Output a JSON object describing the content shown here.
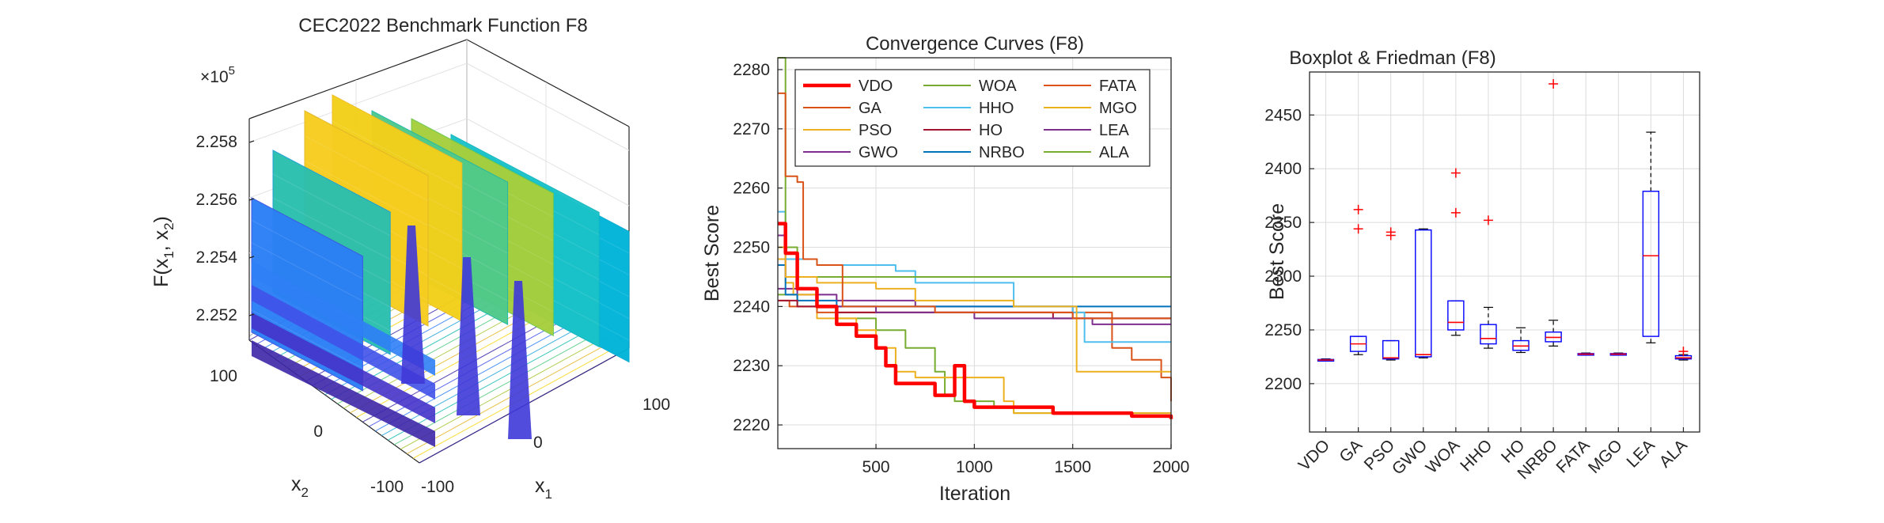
{
  "panel1": {
    "title": "CEC2022 Benchmark Function F8",
    "exponent_label": "×10",
    "exponent_power": "5",
    "zlabel": "F(x",
    "zlabel_sub1": "1",
    "zlabel_mid": ", x",
    "zlabel_sub2": "2",
    "zlabel_end": ")",
    "xlabel": "x",
    "xlabel_sub": "1",
    "ylabel": "x",
    "ylabel_sub": "2",
    "z_ticks": [
      "2.258",
      "2.256",
      "2.254",
      "2.252"
    ],
    "x1_ticks": [
      "-100",
      "0",
      "100"
    ],
    "x2_ticks": [
      "100",
      "0",
      "-100"
    ]
  },
  "chart_data": [
    {
      "type": "surface",
      "title": "CEC2022 Benchmark Function F8",
      "xlabel": "x1",
      "ylabel": "x2",
      "zlabel": "F(x1, x2)",
      "xlim": [
        -100,
        100
      ],
      "ylim": [
        -100,
        100
      ],
      "zlim": [
        225100,
        225900
      ],
      "z_scale": "×10^5",
      "colormap": "parula",
      "contours_below": true
    },
    {
      "type": "line",
      "title": "Convergence Curves (F8)",
      "xlabel": "Iteration",
      "ylabel": "Best Score",
      "xlim": [
        1,
        2000
      ],
      "ylim": [
        2216,
        2282
      ],
      "x_ticks": [
        500,
        1000,
        1500,
        2000
      ],
      "y_ticks": [
        2220,
        2230,
        2240,
        2250,
        2260,
        2270,
        2280
      ],
      "grid": true,
      "legend_position": "top-center",
      "legend_columns": 3,
      "series": [
        {
          "name": "VDO",
          "color": "#ff0000",
          "width": 4.5,
          "points": [
            [
              1,
              2254
            ],
            [
              40,
              2249
            ],
            [
              100,
              2243
            ],
            [
              200,
              2240
            ],
            [
              300,
              2237
            ],
            [
              400,
              2235
            ],
            [
              500,
              2233
            ],
            [
              550,
              2230
            ],
            [
              600,
              2227
            ],
            [
              700,
              2227
            ],
            [
              800,
              2225
            ],
            [
              850,
              2225
            ],
            [
              900,
              2230
            ],
            [
              950,
              2224
            ],
            [
              1000,
              2223
            ],
            [
              1150,
              2223
            ],
            [
              1250,
              2223
            ],
            [
              1400,
              2222
            ],
            [
              1600,
              2222
            ],
            [
              1800,
              2221.5
            ],
            [
              2000,
              2221
            ]
          ]
        },
        {
          "name": "GA",
          "color": "#d95319",
          "width": 2,
          "points": [
            [
              1,
              2276
            ],
            [
              40,
              2262
            ],
            [
              100,
              2261
            ],
            [
              130,
              2248
            ],
            [
              200,
              2247
            ],
            [
              330,
              2240
            ],
            [
              400,
              2240
            ],
            [
              800,
              2239
            ],
            [
              1500,
              2238
            ],
            [
              1900,
              2238
            ],
            [
              2000,
              2238
            ]
          ]
        },
        {
          "name": "PSO",
          "color": "#edb120",
          "width": 2,
          "points": [
            [
              1,
              2250
            ],
            [
              40,
              2245
            ],
            [
              100,
              2245
            ],
            [
              200,
              2244
            ],
            [
              400,
              2244
            ],
            [
              500,
              2243
            ],
            [
              700,
              2241
            ],
            [
              1100,
              2241
            ],
            [
              1200,
              2240
            ],
            [
              1480,
              2240
            ],
            [
              1520,
              2229
            ],
            [
              2000,
              2229
            ]
          ]
        },
        {
          "name": "GWO",
          "color": "#7e2f8e",
          "width": 2,
          "points": [
            [
              1,
              2252
            ],
            [
              40,
              2245
            ],
            [
              100,
              2243
            ],
            [
              200,
              2240
            ],
            [
              500,
              2239
            ],
            [
              1000,
              2238
            ],
            [
              1500,
              2238
            ],
            [
              1600,
              2237
            ],
            [
              2000,
              2237
            ]
          ]
        },
        {
          "name": "WOA",
          "color": "#77ac30",
          "width": 2,
          "points": [
            [
              1,
              2282
            ],
            [
              30,
              2282
            ],
            [
              40,
              2250
            ],
            [
              100,
              2245
            ],
            [
              400,
              2245
            ],
            [
              2000,
              2245
            ]
          ]
        },
        {
          "name": "HHO",
          "color": "#4dbeee",
          "width": 2,
          "points": [
            [
              1,
              2256
            ],
            [
              40,
              2248
            ],
            [
              200,
              2247
            ],
            [
              600,
              2246
            ],
            [
              700,
              2244
            ],
            [
              1150,
              2244
            ],
            [
              1200,
              2240
            ],
            [
              1500,
              2239
            ],
            [
              1560,
              2234
            ],
            [
              2000,
              2234
            ]
          ]
        },
        {
          "name": "HO",
          "color": "#a2142f",
          "width": 2,
          "points": [
            [
              1,
              2241
            ],
            [
              100,
              2240
            ],
            [
              300,
              2239
            ],
            [
              900,
              2239
            ],
            [
              1200,
              2239
            ],
            [
              1400,
              2238
            ],
            [
              2000,
              2238
            ]
          ]
        },
        {
          "name": "NRBO",
          "color": "#0072bd",
          "width": 2,
          "points": [
            [
              1,
              2247
            ],
            [
              40,
              2242
            ],
            [
              100,
              2241
            ],
            [
              300,
              2240
            ],
            [
              2000,
              2240
            ]
          ]
        },
        {
          "name": "FATA",
          "color": "#d95319",
          "width": 2,
          "points": [
            [
              1,
              2241
            ],
            [
              60,
              2240
            ],
            [
              200,
              2239
            ],
            [
              500,
              2239
            ],
            [
              1000,
              2239
            ],
            [
              1400,
              2239
            ],
            [
              1700,
              2233
            ],
            [
              1800,
              2231
            ],
            [
              1950,
              2228
            ],
            [
              2000,
              2224
            ]
          ]
        },
        {
          "name": "MGO",
          "color": "#edb120",
          "width": 2,
          "points": [
            [
              1,
              2248
            ],
            [
              40,
              2244
            ],
            [
              80,
              2242
            ],
            [
              200,
              2238
            ],
            [
              400,
              2236
            ],
            [
              500,
              2233
            ],
            [
              600,
              2229
            ],
            [
              700,
              2228
            ],
            [
              800,
              2228
            ],
            [
              1000,
              2228
            ],
            [
              1150,
              2224
            ],
            [
              1200,
              2222
            ],
            [
              1500,
              2222
            ],
            [
              2000,
              2222
            ]
          ]
        },
        {
          "name": "LEA",
          "color": "#7e2f8e",
          "width": 2,
          "points": [
            [
              1,
              2243
            ],
            [
              100,
              2242
            ],
            [
              300,
              2241
            ],
            [
              700,
              2240
            ],
            [
              1300,
              2240
            ],
            [
              1500,
              2238
            ],
            [
              2000,
              2238
            ]
          ]
        },
        {
          "name": "ALA",
          "color": "#77ac30",
          "width": 2,
          "points": [
            [
              1,
              2242
            ],
            [
              100,
              2240
            ],
            [
              300,
              2238
            ],
            [
              500,
              2236
            ],
            [
              650,
              2233
            ],
            [
              800,
              2229
            ],
            [
              850,
              2225
            ],
            [
              900,
              2224
            ],
            [
              1000,
              2224
            ],
            [
              1100,
              2223
            ],
            [
              1200,
              2222
            ],
            [
              1500,
              2222
            ],
            [
              2000,
              2222
            ]
          ]
        }
      ]
    },
    {
      "type": "boxplot",
      "title": "Boxplot & Friedman (F8)",
      "ylabel": "Best Score",
      "ylim": [
        2155,
        2490
      ],
      "y_ticks": [
        2200,
        2250,
        2300,
        2350,
        2400,
        2450
      ],
      "grid": true,
      "categories": [
        "VDO",
        "GA",
        "PSO",
        "GWO",
        "WOA",
        "HHO",
        "HO",
        "NRBO",
        "FATA",
        "MGO",
        "LEA",
        "ALA"
      ],
      "boxes": [
        {
          "name": "VDO",
          "min": 2221,
          "q1": 2221.5,
          "median": 2222,
          "q3": 2222.5,
          "max": 2223,
          "outliers": []
        },
        {
          "name": "GA",
          "min": 2227,
          "q1": 2230,
          "median": 2237,
          "q3": 2244,
          "max": 2244,
          "outliers": [
            2362,
            2344
          ]
        },
        {
          "name": "PSO",
          "min": 2222,
          "q1": 2223,
          "median": 2224,
          "q3": 2240,
          "max": 2240,
          "outliers": [
            2338,
            2341
          ]
        },
        {
          "name": "GWO",
          "min": 2224,
          "q1": 2225,
          "median": 2227,
          "q3": 2343,
          "max": 2344,
          "outliers": []
        },
        {
          "name": "WOA",
          "min": 2245,
          "q1": 2250,
          "median": 2257,
          "q3": 2277,
          "max": 2277,
          "outliers": [
            2396,
            2359
          ]
        },
        {
          "name": "HHO",
          "min": 2233,
          "q1": 2237,
          "median": 2242,
          "q3": 2255,
          "max": 2271,
          "outliers": [
            2352
          ]
        },
        {
          "name": "HO",
          "min": 2229,
          "q1": 2231,
          "median": 2235,
          "q3": 2240,
          "max": 2252,
          "outliers": []
        },
        {
          "name": "NRBO",
          "min": 2235,
          "q1": 2239,
          "median": 2243,
          "q3": 2248,
          "max": 2259,
          "outliers": [
            2479
          ]
        },
        {
          "name": "FATA",
          "min": 2226.5,
          "q1": 2227,
          "median": 2227.5,
          "q3": 2228,
          "max": 2228.5,
          "outliers": []
        },
        {
          "name": "MGO",
          "min": 2226.5,
          "q1": 2227,
          "median": 2227.5,
          "q3": 2228,
          "max": 2228.5,
          "outliers": []
        },
        {
          "name": "LEA",
          "min": 2238,
          "q1": 2244,
          "median": 2319,
          "q3": 2379,
          "max": 2434,
          "outliers": []
        },
        {
          "name": "ALA",
          "min": 2222,
          "q1": 2223,
          "median": 2224,
          "q3": 2226,
          "max": 2227,
          "outliers": [
            2230
          ]
        }
      ]
    }
  ],
  "colors": {
    "axis": "#262626",
    "grid": "#dcdcdc",
    "box": "#0000ff",
    "median": "#ff0000",
    "outlier": "#ff0000",
    "whisker": "#000000"
  }
}
